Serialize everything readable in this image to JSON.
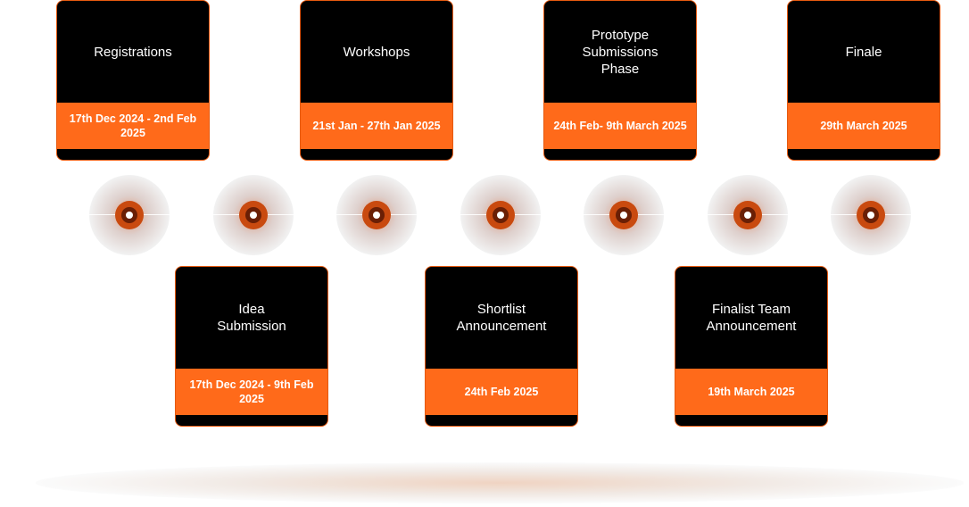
{
  "top_events": [
    {
      "title": "Registrations",
      "date": "17th Dec 2024 - 2nd Feb 2025"
    },
    {
      "title": "Workshops",
      "date": "21st Jan - 27th Jan 2025"
    },
    {
      "title": "Prototype\nSubmissions\nPhase",
      "date": "24th Feb- 9th March 2025"
    },
    {
      "title": "Finale",
      "date": "29th March 2025"
    }
  ],
  "bottom_events": [
    {
      "title": "Idea\nSubmission",
      "date": "17th Dec 2024 - 9th Feb 2025"
    },
    {
      "title": "Shortlist\nAnnouncement",
      "date": "24th Feb 2025"
    },
    {
      "title": "Finalist Team\nAnnouncement",
      "date": "19th March 2025"
    }
  ],
  "colors": {
    "card_background": "#000000",
    "date_band": "#ff6a1a",
    "marker_ring": "#c94a0f",
    "text": "#ffffff"
  },
  "icons": {
    "timeline_marker": "timeline-marker-icon"
  }
}
